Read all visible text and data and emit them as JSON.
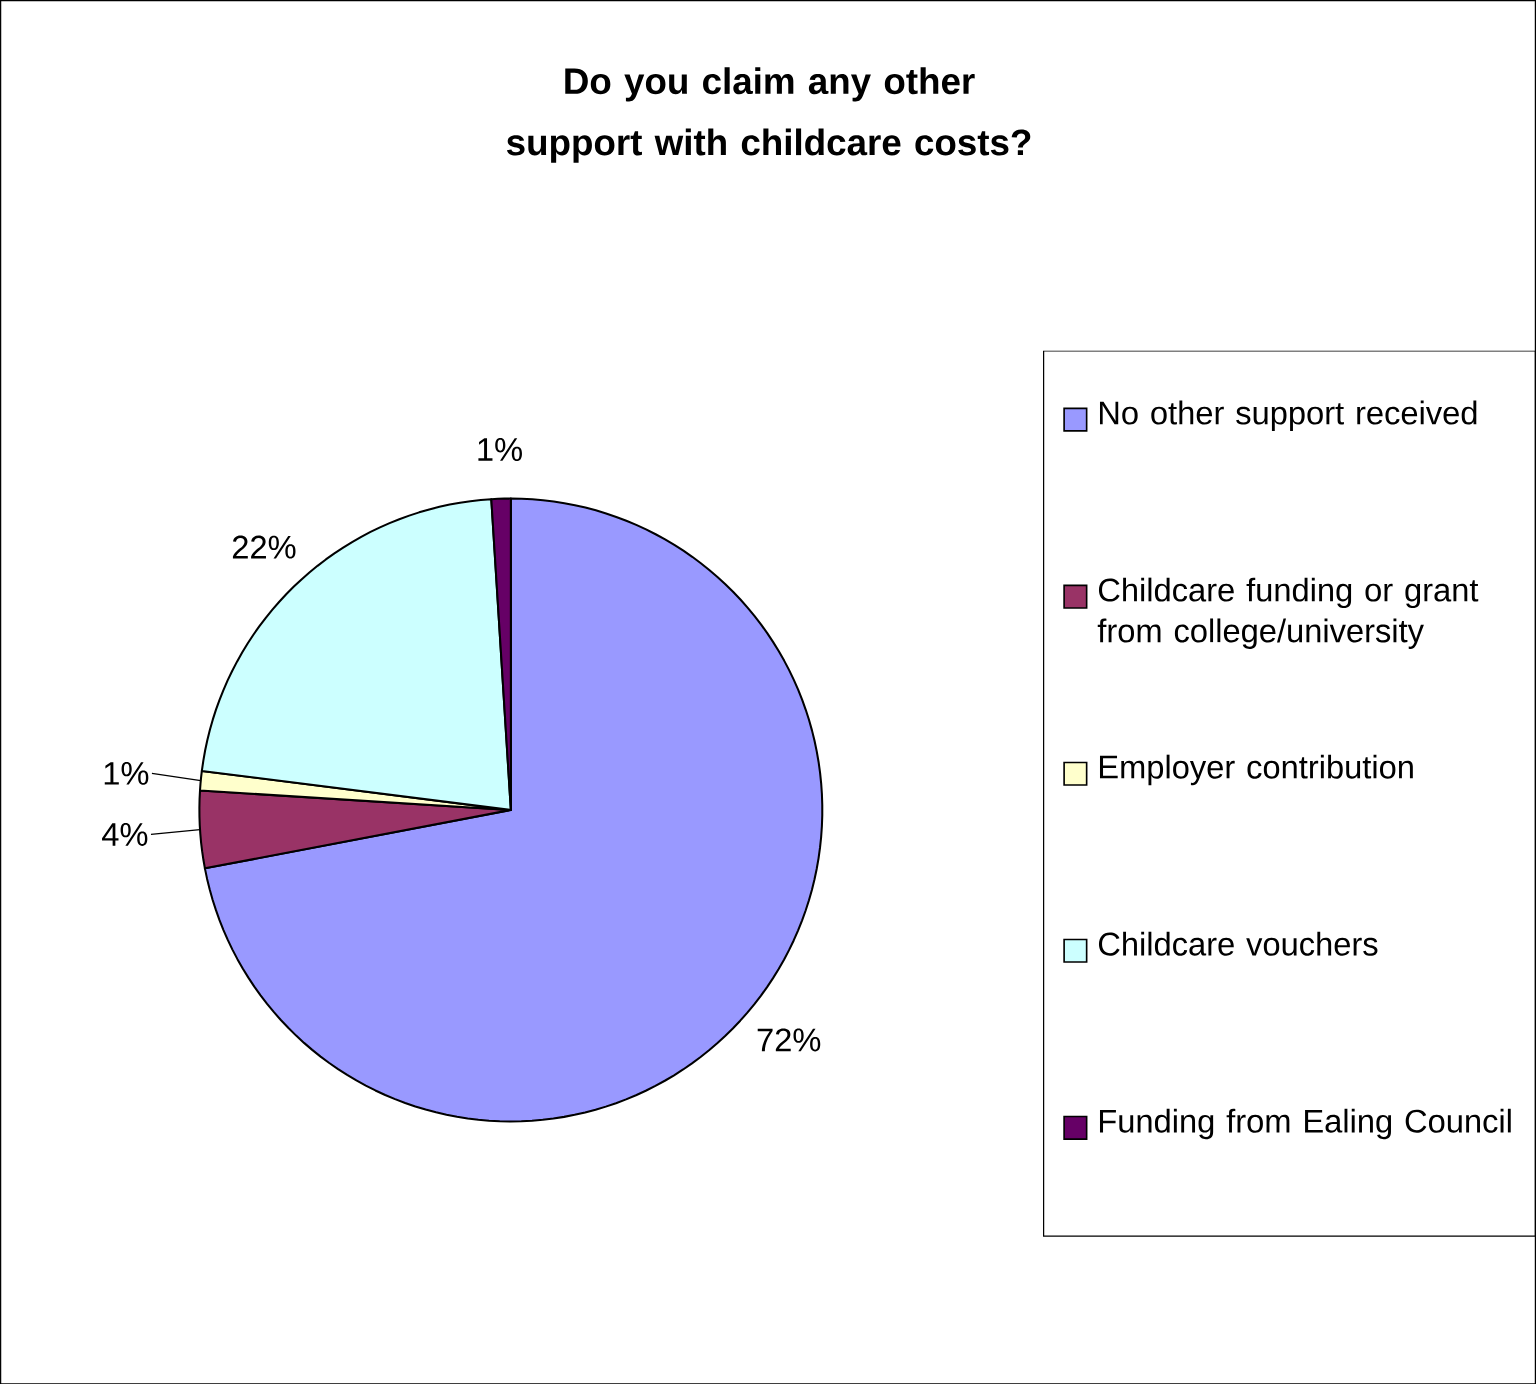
{
  "chart_data": {
    "type": "pie",
    "title": "Do you claim any other support with childcare costs?",
    "categories": [
      "No other support received",
      "Childcare funding or grant from college/university",
      "Employer contribution",
      "Childcare vouchers",
      "Funding from Ealing Council"
    ],
    "values": [
      72,
      4,
      1,
      22,
      1
    ],
    "colors": [
      "#9999ff",
      "#993366",
      "#ffffcc",
      "#ccffff",
      "#660066"
    ],
    "value_labels": [
      "72%",
      "4%",
      "1%",
      "22%",
      "1%"
    ],
    "legend": "right"
  }
}
